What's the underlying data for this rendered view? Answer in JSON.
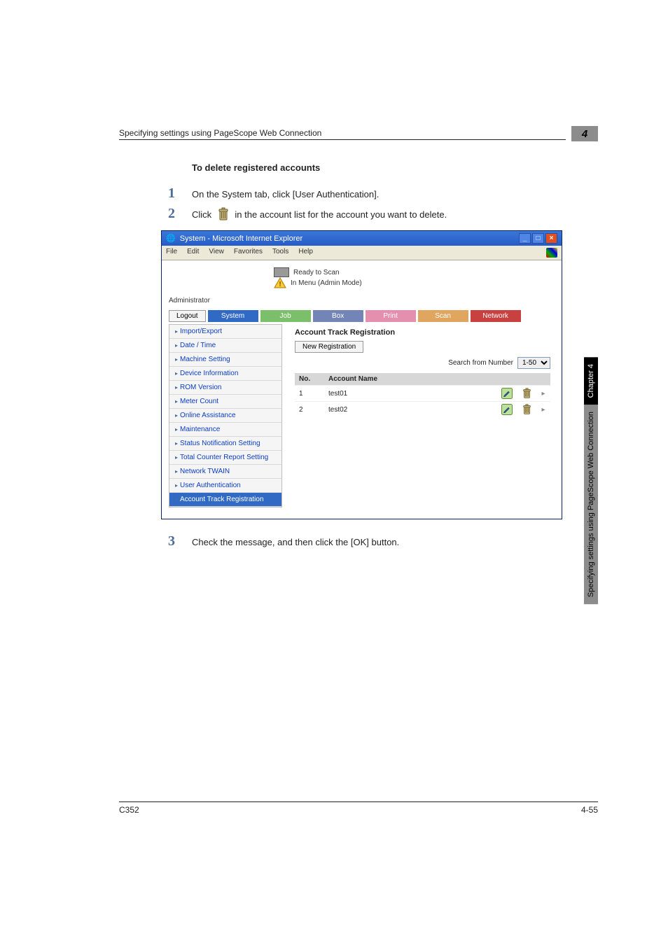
{
  "chapter": {
    "title": "Specifying settings using PageScope Web Connection",
    "num": "4"
  },
  "subhead": "To delete registered accounts",
  "steps": {
    "s1": {
      "num": "1",
      "text": "On the System tab, click [User Authentication]."
    },
    "s2": {
      "num": "2",
      "pre": "Click",
      "post": "in the account list for the account you want to delete."
    },
    "s3": {
      "num": "3",
      "text": "Check the message, and then click the [OK] button."
    }
  },
  "ie": {
    "title": "System - Microsoft Internet Explorer",
    "menu": [
      "File",
      "Edit",
      "View",
      "Favorites",
      "Tools",
      "Help"
    ],
    "status1": "Ready to Scan",
    "status2": "In Menu (Admin Mode)",
    "admin": "Administrator",
    "logout": "Logout",
    "tabs": {
      "system": "System",
      "job": "Job",
      "box": "Box",
      "print": "Print",
      "scan": "Scan",
      "network": "Network"
    },
    "sidebar": [
      "Import/Export",
      "Date / Time",
      "Machine Setting",
      "Device Information",
      "ROM Version",
      "Meter Count",
      "Online Assistance",
      "Maintenance",
      "Status Notification Setting",
      "Total Counter Report Setting",
      "Network TWAIN",
      "User Authentication",
      "Account Track Registration"
    ],
    "main": {
      "heading": "Account Track Registration",
      "newreg": "New Registration",
      "search_label": "Search from Number",
      "search_value": "1-50",
      "cols": {
        "no": "No.",
        "name": "Account Name"
      },
      "rows": [
        {
          "no": "1",
          "name": "test01"
        },
        {
          "no": "2",
          "name": "test02"
        }
      ]
    }
  },
  "sidetab": {
    "black": "Chapter 4",
    "gray": "Specifying settings using PageScope Web Connection"
  },
  "footer": {
    "left": "C352",
    "right": "4-55"
  },
  "svg": {
    "trash": "<svg width='18' height='20' viewBox='0 0 18 20'><rect x='4' y='5' width='10' height='13' rx='1' fill='#c9b97c' stroke='#6b5a2e'/><line x1='6.5' y1='7' x2='6.5' y2='16' stroke='#6b5a2e'/><line x1='9' y1='7' x2='9' y2='16' stroke='#6b5a2e'/><line x1='11.5' y1='7' x2='11.5' y2='16' stroke='#6b5a2e'/><rect x='3' y='3' width='12' height='3' rx='1' fill='#c9b97c' stroke='#6b5a2e'/><rect x='7' y='1' width='4' height='2' fill='#c9b97c' stroke='#6b5a2e'/></svg>",
    "trash_sm": "<svg width='15' height='16' viewBox='0 0 18 20'><rect x='4' y='5' width='10' height='13' rx='1' fill='#c9b97c' stroke='#6b5a2e'/><line x1='6.5' y1='7' x2='6.5' y2='16' stroke='#6b5a2e'/><line x1='9' y1='7' x2='9' y2='16' stroke='#6b5a2e'/><line x1='11.5' y1='7' x2='11.5' y2='16' stroke='#6b5a2e'/><rect x='3' y='3' width='12' height='3' rx='1' fill='#c9b97c' stroke='#6b5a2e'/><rect x='7' y='1' width='4' height='2' fill='#c9b97c' stroke='#6b5a2e'/></svg>",
    "edit": "<svg width='16' height='16' viewBox='0 0 16 16'><rect x='0.5' y='0.5' width='15' height='15' rx='2' fill='#bfe09a' stroke='#5a8a3a'/><path d='M4 11 L10 5 L11.5 6.5 L5.5 12.5 L3.5 13 Z' fill='#2b5a8a' stroke='#1a3a5a' stroke-width='0.5'/></svg>",
    "warn": "<svg width='18' height='16' viewBox='0 0 18 16'><polygon points='9,1 17,15 1,15' fill='#ffcc33' stroke='#aa7700'/><text x='9' y='13' text-anchor='middle' font-size='10' font-weight='bold' fill='#6b4a00'>!</text></svg>"
  }
}
